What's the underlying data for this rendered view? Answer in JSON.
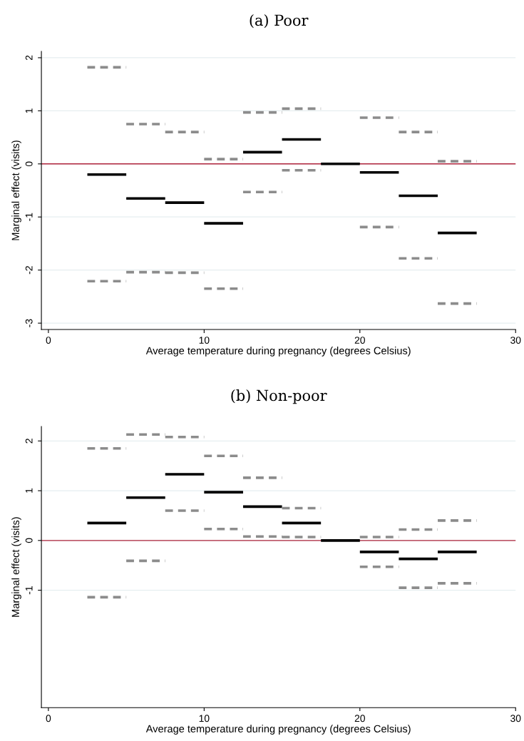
{
  "chart_data": [
    {
      "type": "line",
      "title": "(a) Poor",
      "xlabel": "Average temperature during pregnancy (degrees Celsius)",
      "ylabel": "Marginal effect (visits)",
      "xlim": [
        -0.45,
        30
      ],
      "xticks": [
        0,
        10,
        20,
        30
      ],
      "ylim": [
        -3.12,
        2.12
      ],
      "yticks": [
        -3,
        -2,
        -1,
        0,
        1,
        2
      ],
      "grid": "y",
      "ref_lines": [
        {
          "axis": "y",
          "value": 0,
          "color": "#b0243c",
          "line_style": "solid"
        }
      ],
      "series": [
        {
          "color": "#000000",
          "line_style": "solid",
          "x": [
            2.5,
            5,
            5,
            7.5,
            7.5,
            10,
            10,
            12.5,
            12.5,
            15,
            15,
            17.5,
            17.5,
            20,
            20,
            22.5,
            22.5,
            25,
            25,
            27.5
          ],
          "values": [
            -0.2,
            -0.2,
            -0.65,
            -0.65,
            -0.73,
            -0.73,
            -1.12,
            -1.12,
            0.22,
            0.22,
            0.46,
            0.46,
            0,
            0,
            -0.16,
            -0.16,
            -0.6,
            -0.6,
            -1.3,
            -1.3
          ]
        },
        {
          "color": "#8c8c8c",
          "line_style": "dashed",
          "x": [
            2.5,
            5,
            5,
            7.5,
            7.5,
            10,
            10,
            12.5,
            12.5,
            15,
            15,
            17.5,
            20,
            22.5,
            22.5,
            25,
            25,
            27.5
          ],
          "values": [
            1.82,
            1.82,
            0.75,
            0.75,
            0.6,
            0.6,
            0.09,
            0.09,
            0.97,
            0.97,
            1.04,
            1.04,
            0.87,
            0.87,
            0.6,
            0.6,
            0.05,
            0.05
          ]
        },
        {
          "color": "#8c8c8c",
          "line_style": "dashed",
          "x": [
            2.5,
            5,
            5,
            7.5,
            7.5,
            10,
            10,
            12.5,
            12.5,
            15,
            15,
            17.5,
            20,
            22.5,
            22.5,
            25,
            25,
            27.5
          ],
          "values": [
            -2.21,
            -2.21,
            -2.04,
            -2.04,
            -2.05,
            -2.05,
            -2.35,
            -2.35,
            -0.53,
            -0.53,
            -0.12,
            -0.12,
            -1.19,
            -1.19,
            -1.78,
            -1.78,
            -2.63,
            -2.63
          ]
        }
      ]
    },
    {
      "type": "line",
      "title": "(b) Non-poor",
      "xlabel": "Average temperature during pregnancy (degrees Celsius)",
      "ylabel": "Marginal effect (visits)",
      "xlim": [
        -0.45,
        30
      ],
      "xticks": [
        0,
        10,
        20,
        30
      ],
      "ylim": [
        -3.36,
        2.29
      ],
      "yticks": [
        -1,
        0,
        1,
        2
      ],
      "grid": "y",
      "ref_lines": [
        {
          "axis": "y",
          "value": 0,
          "color": "#b0243c",
          "line_style": "solid"
        }
      ],
      "series": [
        {
          "color": "#000000",
          "line_style": "solid",
          "x": [
            2.5,
            5,
            5,
            7.5,
            7.5,
            10,
            10,
            12.5,
            12.5,
            15,
            15,
            17.5,
            17.5,
            20,
            20,
            22.5,
            22.5,
            25,
            25,
            27.5
          ],
          "values": [
            0.35,
            0.35,
            0.86,
            0.86,
            1.33,
            1.33,
            0.97,
            0.97,
            0.68,
            0.68,
            0.35,
            0.35,
            0,
            0,
            -0.23,
            -0.23,
            -0.37,
            -0.37,
            -0.23,
            -0.23
          ]
        },
        {
          "color": "#8c8c8c",
          "line_style": "dashed",
          "x": [
            2.5,
            5,
            5,
            7.5,
            7.5,
            10,
            10,
            12.5,
            12.5,
            15,
            15,
            17.5,
            20,
            22.5,
            22.5,
            25,
            25,
            27.5
          ],
          "values": [
            1.85,
            1.85,
            2.13,
            2.13,
            2.08,
            2.08,
            1.7,
            1.7,
            1.26,
            1.26,
            0.65,
            0.65,
            0.07,
            0.07,
            0.22,
            0.22,
            0.4,
            0.4
          ]
        },
        {
          "color": "#8c8c8c",
          "line_style": "dashed",
          "x": [
            2.5,
            5,
            5,
            7.5,
            7.5,
            10,
            10,
            12.5,
            12.5,
            15,
            15,
            17.5,
            20,
            22.5,
            22.5,
            25,
            25,
            27.5
          ],
          "values": [
            -1.14,
            -1.14,
            -0.41,
            -0.41,
            0.6,
            0.6,
            0.23,
            0.23,
            0.08,
            0.08,
            0.07,
            0.07,
            -0.53,
            -0.53,
            -0.95,
            -0.95,
            -0.86,
            -0.86
          ]
        }
      ]
    }
  ]
}
